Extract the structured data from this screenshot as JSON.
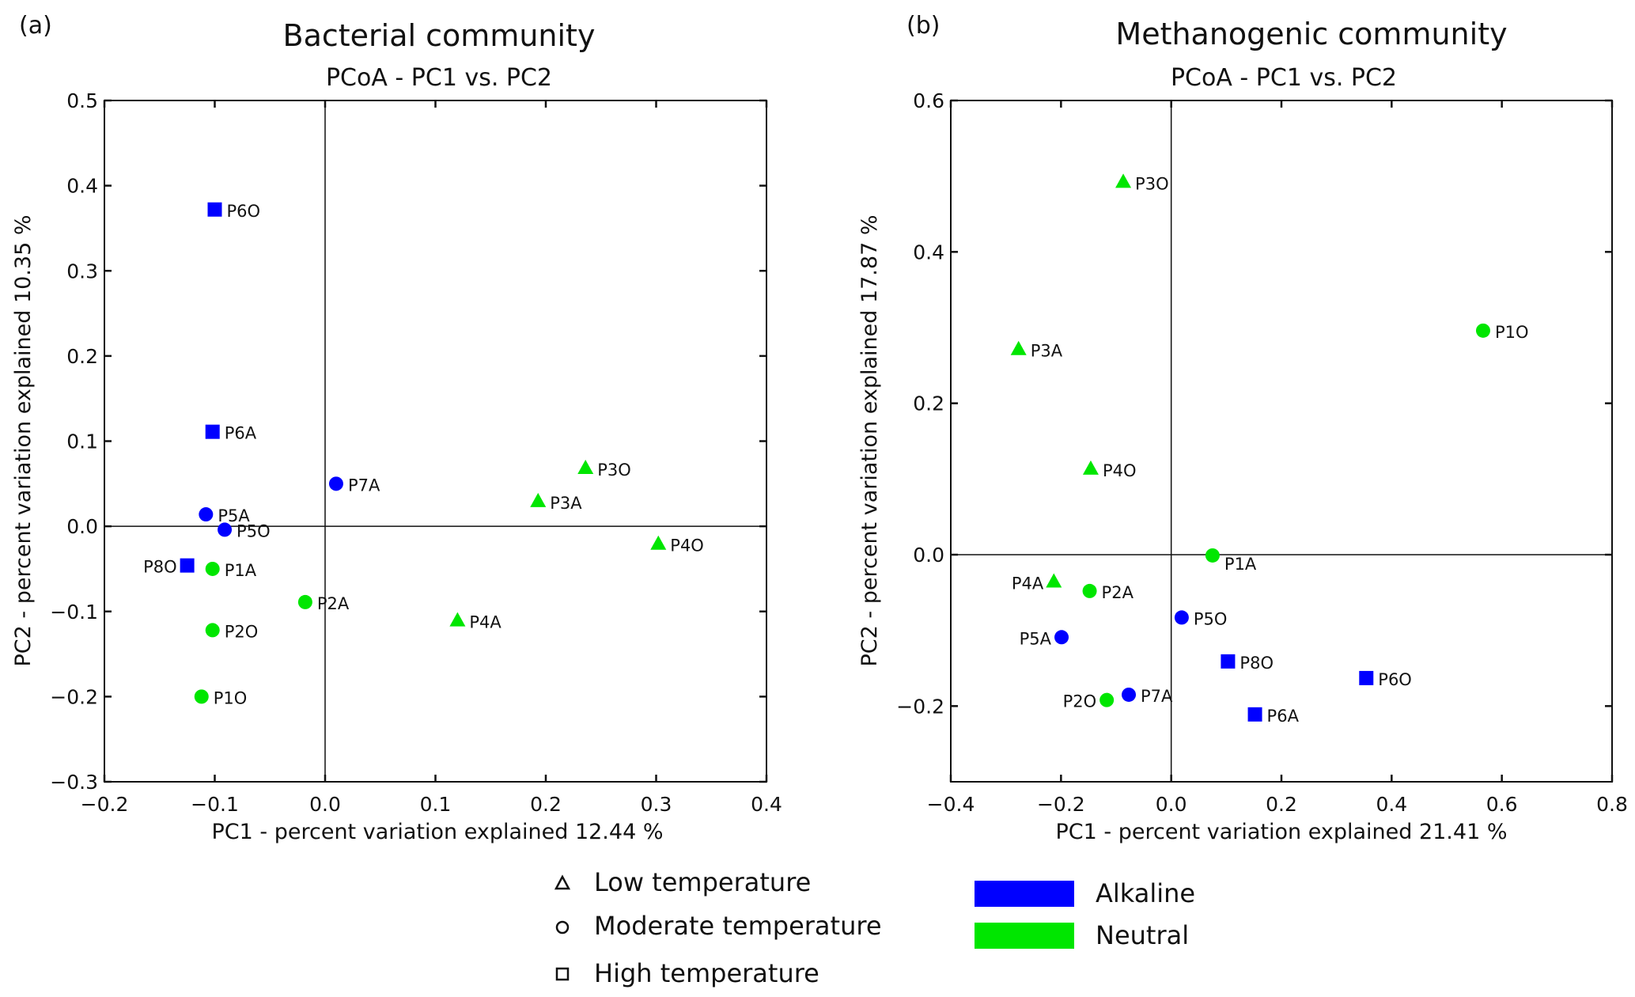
{
  "colors": {
    "Alkaline": "#0000ff",
    "Neutral": "#00e600"
  },
  "legend": {
    "shapes": [
      {
        "shape": "triangle",
        "label": "Low temperature"
      },
      {
        "shape": "circle",
        "label": "Moderate temperature"
      },
      {
        "shape": "square",
        "label": "High temperature"
      }
    ],
    "colors": [
      {
        "group": "Alkaline",
        "label": "Alkaline"
      },
      {
        "group": "Neutral",
        "label": "Neutral"
      }
    ]
  },
  "chart_data": [
    {
      "type": "scatter",
      "panel_label": "(a)",
      "title": "Bacterial community",
      "subtitle": "PCoA - PC1 vs. PC2",
      "xlabel": "PC1 - percent variation explained 12.44 %",
      "ylabel": "PC2 - percent variation explained 10.35 %",
      "xlim": [
        -0.2,
        0.4
      ],
      "ylim": [
        -0.3,
        0.5
      ],
      "xticks": [
        -0.2,
        -0.1,
        0.0,
        0.1,
        0.2,
        0.3,
        0.4
      ],
      "xtick_labels": [
        "−0.2",
        "−0.1",
        "0.0",
        "0.1",
        "0.2",
        "0.3",
        "0.4"
      ],
      "yticks": [
        -0.3,
        -0.2,
        -0.1,
        0.0,
        0.1,
        0.2,
        0.3,
        0.4,
        0.5
      ],
      "ytick_labels": [
        "−0.3",
        "−0.2",
        "−0.1",
        "0.0",
        "0.1",
        "0.2",
        "0.3",
        "0.4",
        "0.5"
      ],
      "points": [
        {
          "label": "P6O",
          "x": -0.1,
          "y": 0.372,
          "shape": "square",
          "group": "Alkaline"
        },
        {
          "label": "P6A",
          "x": -0.102,
          "y": 0.111,
          "shape": "square",
          "group": "Alkaline"
        },
        {
          "label": "P7A",
          "x": 0.01,
          "y": 0.05,
          "shape": "circle",
          "group": "Alkaline"
        },
        {
          "label": "P5A",
          "x": -0.108,
          "y": 0.014,
          "shape": "circle",
          "group": "Alkaline"
        },
        {
          "label": "P5O",
          "x": -0.091,
          "y": -0.004,
          "shape": "circle",
          "group": "Alkaline"
        },
        {
          "label": "P8O",
          "x": -0.125,
          "y": -0.046,
          "shape": "square",
          "group": "Alkaline",
          "label_side": "left"
        },
        {
          "label": "P1A",
          "x": -0.102,
          "y": -0.05,
          "shape": "circle",
          "group": "Neutral"
        },
        {
          "label": "P2A",
          "x": -0.018,
          "y": -0.089,
          "shape": "circle",
          "group": "Neutral"
        },
        {
          "label": "P2O",
          "x": -0.102,
          "y": -0.122,
          "shape": "circle",
          "group": "Neutral"
        },
        {
          "label": "P1O",
          "x": -0.112,
          "y": -0.2,
          "shape": "circle",
          "group": "Neutral"
        },
        {
          "label": "P3O",
          "x": 0.236,
          "y": 0.068,
          "shape": "triangle",
          "group": "Neutral"
        },
        {
          "label": "P3A",
          "x": 0.193,
          "y": 0.029,
          "shape": "triangle",
          "group": "Neutral"
        },
        {
          "label": "P4O",
          "x": 0.302,
          "y": -0.021,
          "shape": "triangle",
          "group": "Neutral"
        },
        {
          "label": "P4A",
          "x": 0.12,
          "y": -0.111,
          "shape": "triangle",
          "group": "Neutral"
        }
      ]
    },
    {
      "type": "scatter",
      "panel_label": "(b)",
      "title": "Methanogenic community",
      "subtitle": "PCoA - PC1 vs. PC2",
      "xlabel": "PC1 - percent variation explained 21.41 %",
      "ylabel": "PC2 - percent variation explained 17.87 %",
      "xlim": [
        -0.4,
        0.8
      ],
      "ylim": [
        -0.3,
        0.6
      ],
      "xticks": [
        -0.4,
        -0.2,
        0.0,
        0.2,
        0.4,
        0.6,
        0.8
      ],
      "xtick_labels": [
        "−0.4",
        "−0.2",
        "0.0",
        "0.2",
        "0.4",
        "0.6",
        "0.8"
      ],
      "yticks": [
        -0.2,
        0.0,
        0.2,
        0.4,
        0.6
      ],
      "ytick_labels": [
        "−0.2",
        "0.0",
        "0.2",
        "0.4",
        "0.6"
      ],
      "points": [
        {
          "label": "P3O",
          "x": -0.087,
          "y": 0.492,
          "shape": "triangle",
          "group": "Neutral"
        },
        {
          "label": "P3A",
          "x": -0.277,
          "y": 0.271,
          "shape": "triangle",
          "group": "Neutral"
        },
        {
          "label": "P4O",
          "x": -0.146,
          "y": 0.113,
          "shape": "triangle",
          "group": "Neutral"
        },
        {
          "label": "P1O",
          "x": 0.566,
          "y": 0.296,
          "shape": "circle",
          "group": "Neutral"
        },
        {
          "label": "P1A",
          "x": 0.075,
          "y": -0.001,
          "shape": "circle",
          "group": "Neutral",
          "label_side": "below"
        },
        {
          "label": "P4A",
          "x": -0.213,
          "y": -0.036,
          "shape": "triangle",
          "group": "Neutral",
          "label_side": "left"
        },
        {
          "label": "P2A",
          "x": -0.148,
          "y": -0.048,
          "shape": "circle",
          "group": "Neutral"
        },
        {
          "label": "P5O",
          "x": 0.019,
          "y": -0.083,
          "shape": "circle",
          "group": "Alkaline"
        },
        {
          "label": "P5A",
          "x": -0.199,
          "y": -0.109,
          "shape": "circle",
          "group": "Alkaline",
          "label_side": "left"
        },
        {
          "label": "P8O",
          "x": 0.103,
          "y": -0.141,
          "shape": "square",
          "group": "Alkaline"
        },
        {
          "label": "P6O",
          "x": 0.354,
          "y": -0.163,
          "shape": "square",
          "group": "Alkaline"
        },
        {
          "label": "P6A",
          "x": 0.152,
          "y": -0.211,
          "shape": "square",
          "group": "Alkaline"
        },
        {
          "label": "P7A",
          "x": -0.077,
          "y": -0.185,
          "shape": "circle",
          "group": "Alkaline"
        },
        {
          "label": "P2O",
          "x": -0.117,
          "y": -0.192,
          "shape": "circle",
          "group": "Neutral",
          "label_side": "left"
        }
      ]
    }
  ]
}
